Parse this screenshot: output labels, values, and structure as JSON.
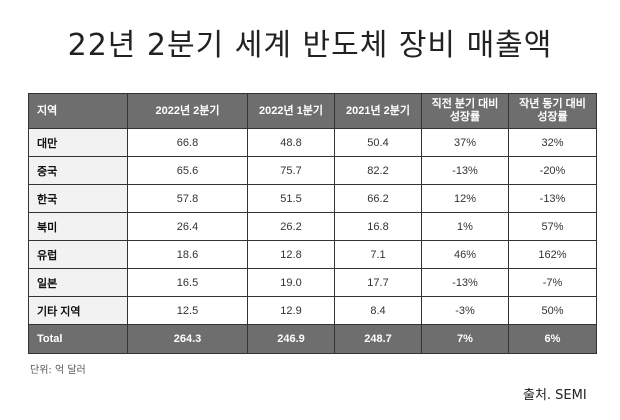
{
  "title": "22년 2분기 세계 반도체 장비 매출액",
  "table": {
    "headers": [
      "지역",
      "2022년 2분기",
      "2022년 1분기",
      "2021년 2분기",
      "직전 분기 대비\n성장률",
      "작년 동기 대비\n성장률"
    ],
    "header_lines": {
      "h4_line1": "직전 분기 대비",
      "h4_line2": "성장률",
      "h5_line1": "작년 동기 대비",
      "h5_line2": "성장률"
    },
    "rows": [
      [
        "대만",
        "66.8",
        "48.8",
        "50.4",
        "37%",
        "32%"
      ],
      [
        "중국",
        "65.6",
        "75.7",
        "82.2",
        "-13%",
        "-20%"
      ],
      [
        "한국",
        "57.8",
        "51.5",
        "66.2",
        "12%",
        "-13%"
      ],
      [
        "북미",
        "26.4",
        "26.2",
        "16.8",
        "1%",
        "57%"
      ],
      [
        "유럽",
        "18.6",
        "12.8",
        "7.1",
        "46%",
        "162%"
      ],
      [
        "일본",
        "16.5",
        "19.0",
        "17.7",
        "-13%",
        "-7%"
      ],
      [
        "기타 지역",
        "12.5",
        "12.9",
        "8.4",
        "-3%",
        "50%"
      ]
    ],
    "total": [
      "Total",
      "264.3",
      "246.9",
      "248.7",
      "7%",
      "6%"
    ]
  },
  "unit_note": "단위: 억 달러",
  "source": "출처. SEMI",
  "colors": {
    "header_bg": "#6e6e6e",
    "header_text": "#ffffff",
    "region_bg": "#f2f2f2",
    "border": "#333333"
  }
}
